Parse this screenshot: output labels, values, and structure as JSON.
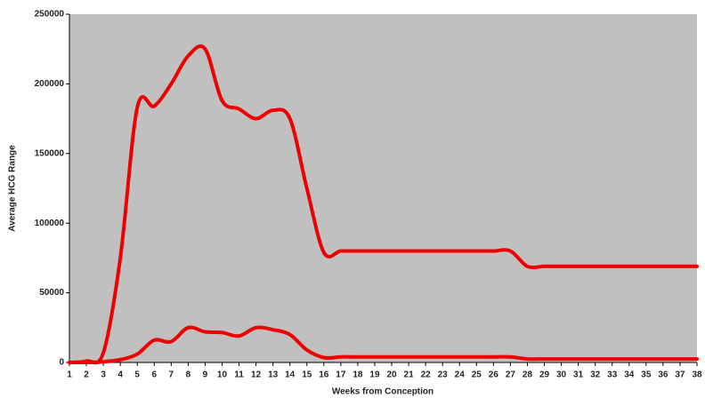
{
  "chart_data": {
    "type": "line",
    "x_label": "Weeks from Conception",
    "y_label": "Average HCG Range",
    "x": [
      1,
      2,
      3,
      4,
      5,
      6,
      7,
      8,
      9,
      10,
      11,
      12,
      13,
      14,
      15,
      16,
      17,
      18,
      19,
      20,
      21,
      22,
      23,
      24,
      25,
      26,
      27,
      28,
      29,
      30,
      31,
      32,
      33,
      34,
      35,
      36,
      37,
      38
    ],
    "series": [
      {
        "color": "#ee0000",
        "values": [
          0,
          1000,
          7000,
          75000,
          183000,
          184000,
          200000,
          220000,
          225000,
          188000,
          182000,
          175000,
          181000,
          175000,
          125000,
          79000,
          80000,
          80000,
          80000,
          80000,
          80000,
          80000,
          80000,
          80000,
          80000,
          80000,
          80000,
          69000,
          69000,
          69000,
          69000,
          69000,
          69000,
          69000,
          69000,
          69000,
          69000,
          69000
        ]
      },
      {
        "color": "#ee0000",
        "values": [
          0,
          0,
          500,
          2000,
          6000,
          16000,
          15000,
          25000,
          22000,
          21500,
          19000,
          25000,
          23500,
          20000,
          9000,
          3500,
          4000,
          4000,
          4000,
          4000,
          4000,
          4000,
          4000,
          4000,
          4000,
          4000,
          4000,
          2500,
          2500,
          2500,
          2500,
          2500,
          2500,
          2500,
          2500,
          2500,
          2500,
          2500
        ]
      }
    ],
    "xlim": [
      1,
      38
    ],
    "xticks": [
      1,
      2,
      3,
      4,
      5,
      6,
      7,
      8,
      9,
      10,
      11,
      12,
      13,
      14,
      15,
      16,
      17,
      18,
      19,
      20,
      21,
      22,
      23,
      24,
      25,
      26,
      27,
      28,
      29,
      30,
      31,
      32,
      33,
      34,
      35,
      36,
      37,
      38
    ],
    "ylim": [
      0,
      250000
    ],
    "yticks": [
      0,
      50000,
      100000,
      150000,
      200000,
      250000
    ],
    "plot_background": "#c0c0c0"
  }
}
